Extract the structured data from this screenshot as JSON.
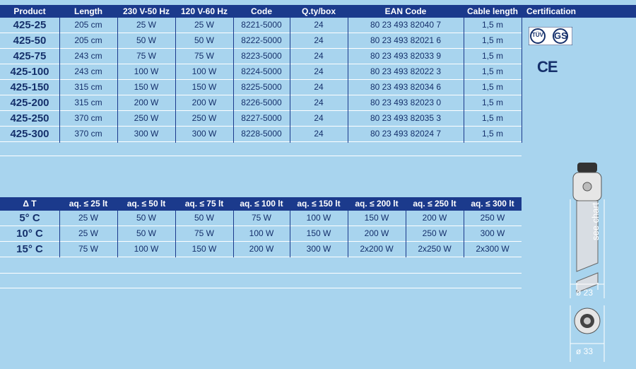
{
  "table1": {
    "headers": [
      "Product",
      "Length",
      "230 V-50 Hz",
      "120 V-60 Hz",
      "Code",
      "Q.ty/box",
      "EAN Code",
      "Cable length",
      "Certification"
    ],
    "rows": [
      [
        "425-25",
        "205 cm",
        "25 W",
        "25 W",
        "8221-5000",
        "24",
        "80 23 493 82040 7",
        "1,5 m"
      ],
      [
        "425-50",
        "205 cm",
        "50 W",
        "50 W",
        "8222-5000",
        "24",
        "80 23 493 82021 6",
        "1,5 m"
      ],
      [
        "425-75",
        "243 cm",
        "75 W",
        "75 W",
        "8223-5000",
        "24",
        "80 23 493 82033 9",
        "1,5 m"
      ],
      [
        "425-100",
        "243 cm",
        "100 W",
        "100 W",
        "8224-5000",
        "24",
        "80 23 493 82022 3",
        "1,5 m"
      ],
      [
        "425-150",
        "315 cm",
        "150 W",
        "150 W",
        "8225-5000",
        "24",
        "80 23 493 82034 6",
        "1,5 m"
      ],
      [
        "425-200",
        "315 cm",
        "200 W",
        "200 W",
        "8226-5000",
        "24",
        "80 23 493 82023 0",
        "1,5 m"
      ],
      [
        "425-250",
        "370 cm",
        "250 W",
        "250 W",
        "8227-5000",
        "24",
        "80 23 493 82035 3",
        "1,5 m"
      ],
      [
        "425-300",
        "370 cm",
        "300 W",
        "300 W",
        "8228-5000",
        "24",
        "80 23 493 82024 7",
        "1,5 m"
      ]
    ]
  },
  "certification": {
    "tuv": "TÜV",
    "gs": "GS",
    "ce": "CE"
  },
  "table2": {
    "headers": [
      "Δ T",
      "aq. ≤ 25 lt",
      "aq. ≤ 50 lt",
      "aq. ≤ 75 lt",
      "aq. ≤ 100 lt",
      "aq. ≤ 150 lt",
      "aq. ≤ 200 lt",
      "aq. ≤ 250 lt",
      "aq. ≤ 300 lt"
    ],
    "rows": [
      [
        "5° C",
        "25 W",
        "50 W",
        "50 W",
        "75 W",
        "100 W",
        "150 W",
        "200 W",
        "250 W"
      ],
      [
        "10° C",
        "25 W",
        "50 W",
        "75 W",
        "100 W",
        "150 W",
        "200 W",
        "250 W",
        "300 W"
      ],
      [
        "15° C",
        "75 W",
        "100 W",
        "150 W",
        "200 W",
        "300 W",
        "2x200 W",
        "2x250 W",
        "2x300 W"
      ]
    ]
  },
  "diagram": {
    "see_chart": "see chart",
    "dia1": "ø 23",
    "dia2": "ø 33"
  }
}
